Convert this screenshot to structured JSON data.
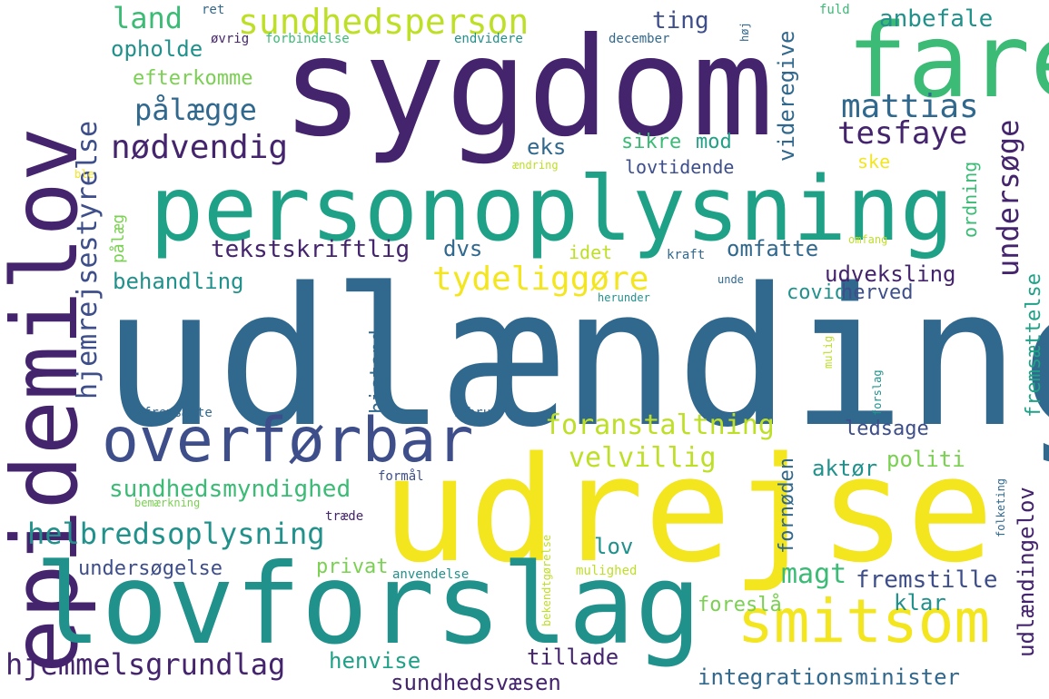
{
  "palette": {
    "dark_purple": "#45246e",
    "indigo": "#3d4e8a",
    "steel_blue": "#31688e",
    "teal": "#21918c",
    "green_teal": "#1fa187",
    "green": "#3bbb75",
    "light_green": "#7ad151",
    "yellow_green": "#bddf26",
    "yellow": "#f3e51e"
  },
  "words": [
    "udlænding",
    "sygdom",
    "fare",
    "personoplysning",
    "epidemilov",
    "overførbar",
    "udrejse",
    "lovforslag",
    "smitsom",
    "sundhedsperson",
    "land",
    "opholde",
    "efterkomme",
    "pålægge",
    "nødvendig",
    "hjemrejsestyrelse",
    "ting",
    "anbefale",
    "mattias",
    "tesfaye",
    "videregive",
    "undersøge",
    "lovtidende",
    "ske",
    "sikre",
    "mod",
    "eks",
    "ordning",
    "tekstskriftlig",
    "dvs",
    "idet",
    "omfatte",
    "tydeliggøre",
    "behandling",
    "udveksling",
    "covid",
    "herved",
    "pålæg",
    "kraft",
    "omfang",
    "unde",
    "herunder",
    "bistand",
    "fremsættelse",
    "mulig",
    "forslag",
    "foranstaltning",
    "ledsage",
    "velvillig",
    "politi",
    "aktør",
    "fornøden",
    "sundhedsmyndighed",
    "helbredsoplysning",
    "udlændingelov",
    "magt",
    "fremstille",
    "klar",
    "lov",
    "undersøgelse",
    "privat",
    "anvendelse",
    "mulighed",
    "foreslå",
    "hjemmelsgrundlag",
    "henvise",
    "tillade",
    "sundhedsvæsen",
    "integrationsminister",
    "fuld",
    "høj",
    "ret",
    "øvrig",
    "forbindelse",
    "endvidere",
    "december",
    "ændring",
    "ble",
    "fremsætte",
    "februar",
    "formål",
    "bemærkning",
    "træde",
    "bekendtgørelse",
    "folketing"
  ]
}
